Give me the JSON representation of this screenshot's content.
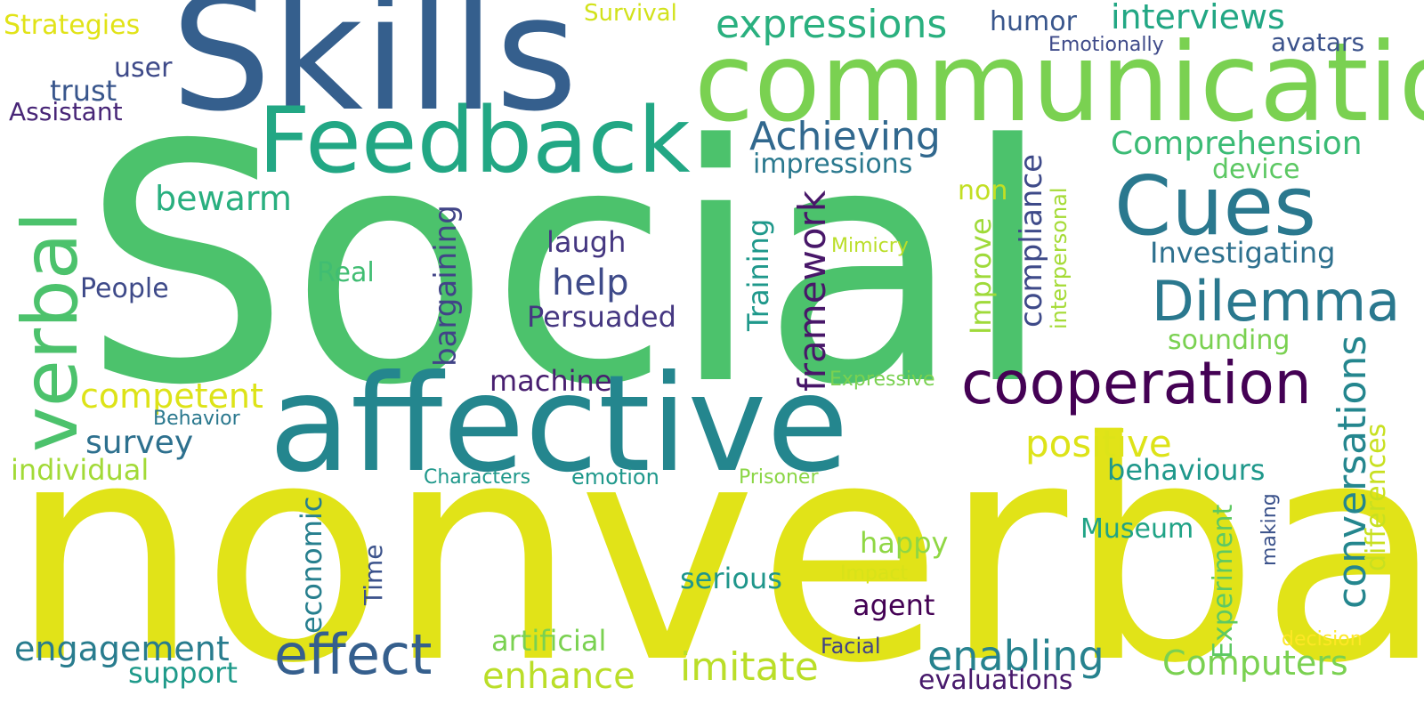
{
  "words": [
    {
      "key": "social",
      "text": "Social",
      "color": "#4CC26C"
    },
    {
      "key": "nonverbal",
      "text": "nonverbal",
      "color": "#E1E318"
    },
    {
      "key": "skills",
      "text": "Skills",
      "color": "#355F8D"
    },
    {
      "key": "communication",
      "text": "communication",
      "color": "#7AD151"
    },
    {
      "key": "affective",
      "text": "affective",
      "color": "#24868E"
    },
    {
      "key": "feedback",
      "text": "Feedback",
      "color": "#22A784"
    },
    {
      "key": "verbal",
      "text": "verbal",
      "color": "#4CC26C"
    },
    {
      "key": "cues",
      "text": "Cues",
      "color": "#2A788E"
    },
    {
      "key": "cooperation",
      "text": "cooperation",
      "color": "#440154"
    },
    {
      "key": "dilemma",
      "text": "Dilemma",
      "color": "#2A788E"
    },
    {
      "key": "effect",
      "text": "effect",
      "color": "#355F8D"
    },
    {
      "key": "expressions",
      "text": "expressions",
      "color": "#2AB07F"
    },
    {
      "key": "interviews",
      "text": "interviews",
      "color": "#22A784"
    },
    {
      "key": "achieving",
      "text": "Achieving",
      "color": "#31688E"
    },
    {
      "key": "impressions",
      "text": "impressions",
      "color": "#2A788E"
    },
    {
      "key": "comprehension",
      "text": "Comprehension",
      "color": "#3BBB75"
    },
    {
      "key": "device",
      "text": "device",
      "color": "#5CC863"
    },
    {
      "key": "investigating",
      "text": "Investigating",
      "color": "#2D708E"
    },
    {
      "key": "sounding",
      "text": "sounding",
      "color": "#7AD151"
    },
    {
      "key": "humor",
      "text": "humor",
      "color": "#39568C"
    },
    {
      "key": "emotionally",
      "text": "Emotionally",
      "color": "#3E4A89"
    },
    {
      "key": "avatars",
      "text": "avatars",
      "color": "#3B528B"
    },
    {
      "key": "survival",
      "text": "Survival",
      "color": "#D2E21B"
    },
    {
      "key": "strategies",
      "text": "Strategies",
      "color": "#E1E318"
    },
    {
      "key": "user",
      "text": "user",
      "color": "#3E4A89"
    },
    {
      "key": "trust",
      "text": "trust",
      "color": "#39568C"
    },
    {
      "key": "assistant",
      "text": "Assistant",
      "color": "#482677"
    },
    {
      "key": "bewarm",
      "text": "bewarm",
      "color": "#29AF7F"
    },
    {
      "key": "people",
      "text": "People",
      "color": "#3E4A89"
    },
    {
      "key": "real",
      "text": "Real",
      "color": "#40BD72"
    },
    {
      "key": "laugh",
      "text": "laugh",
      "color": "#453781"
    },
    {
      "key": "help",
      "text": "help",
      "color": "#3E4A89"
    },
    {
      "key": "persuaded",
      "text": "Persuaded",
      "color": "#453781"
    },
    {
      "key": "machine",
      "text": "machine",
      "color": "#481F70"
    },
    {
      "key": "competent",
      "text": "competent",
      "color": "#DDE318"
    },
    {
      "key": "survey",
      "text": "survey",
      "color": "#2D708E"
    },
    {
      "key": "behavior",
      "text": "Behavior",
      "color": "#2A788E"
    },
    {
      "key": "individual",
      "text": "individual",
      "color": "#A2DA37"
    },
    {
      "key": "characters",
      "text": "Characters",
      "color": "#1F988B"
    },
    {
      "key": "emotion",
      "text": "emotion",
      "color": "#1F988B"
    },
    {
      "key": "prisoner",
      "text": "Prisoner",
      "color": "#8BD646"
    },
    {
      "key": "positive",
      "text": "positive",
      "color": "#DDE318"
    },
    {
      "key": "behaviours",
      "text": "behaviours",
      "color": "#1F988B"
    },
    {
      "key": "museum",
      "text": "Museum",
      "color": "#20A386"
    },
    {
      "key": "happy",
      "text": "happy",
      "color": "#8FD744"
    },
    {
      "key": "serious",
      "text": "serious",
      "color": "#1F968B"
    },
    {
      "key": "impact",
      "text": "Impact",
      "color": "#D8E219"
    },
    {
      "key": "agent",
      "text": "agent",
      "color": "#440154"
    },
    {
      "key": "engagement",
      "text": "engagement",
      "color": "#287C8E"
    },
    {
      "key": "support",
      "text": "support",
      "color": "#1F9A8A"
    },
    {
      "key": "artificial",
      "text": "artificial",
      "color": "#7AD151"
    },
    {
      "key": "enhance",
      "text": "enhance",
      "color": "#BADE28"
    },
    {
      "key": "imitate",
      "text": "imitate",
      "color": "#BADE28"
    },
    {
      "key": "facial",
      "text": "Facial",
      "color": "#414487"
    },
    {
      "key": "enabling",
      "text": "enabling",
      "color": "#26828E"
    },
    {
      "key": "evaluations",
      "text": "evaluations",
      "color": "#481A6C"
    },
    {
      "key": "computers",
      "text": "Computers",
      "color": "#7AD151"
    },
    {
      "key": "decision",
      "text": "decision",
      "color": "#FDE725"
    },
    {
      "key": "mimicry",
      "text": "Mimicry",
      "color": "#BADE28"
    },
    {
      "key": "expressive",
      "text": "Expressive",
      "color": "#7AD151"
    },
    {
      "key": "non",
      "text": "non",
      "color": "#C2DF23"
    },
    {
      "key": "bargaining",
      "text": "bargaining",
      "color": "#414487"
    },
    {
      "key": "training",
      "text": "Training",
      "color": "#1F988B"
    },
    {
      "key": "framework",
      "text": "framework",
      "color": "#481769"
    },
    {
      "key": "improve",
      "text": "Improve",
      "color": "#9FDA3A"
    },
    {
      "key": "compliance",
      "text": "compliance",
      "color": "#3E4A89"
    },
    {
      "key": "interpersonal",
      "text": "interpersonal",
      "color": "#A5DB36"
    },
    {
      "key": "conversations",
      "text": "conversations",
      "color": "#24868E"
    },
    {
      "key": "differences",
      "text": "differences",
      "color": "#C8E020"
    },
    {
      "key": "experiment",
      "text": "Experiment",
      "color": "#5EC962"
    },
    {
      "key": "making",
      "text": "making",
      "color": "#3B528B"
    },
    {
      "key": "economic",
      "text": "economic",
      "color": "#277F8E"
    },
    {
      "key": "time",
      "text": "Time",
      "color": "#3B528B"
    }
  ]
}
